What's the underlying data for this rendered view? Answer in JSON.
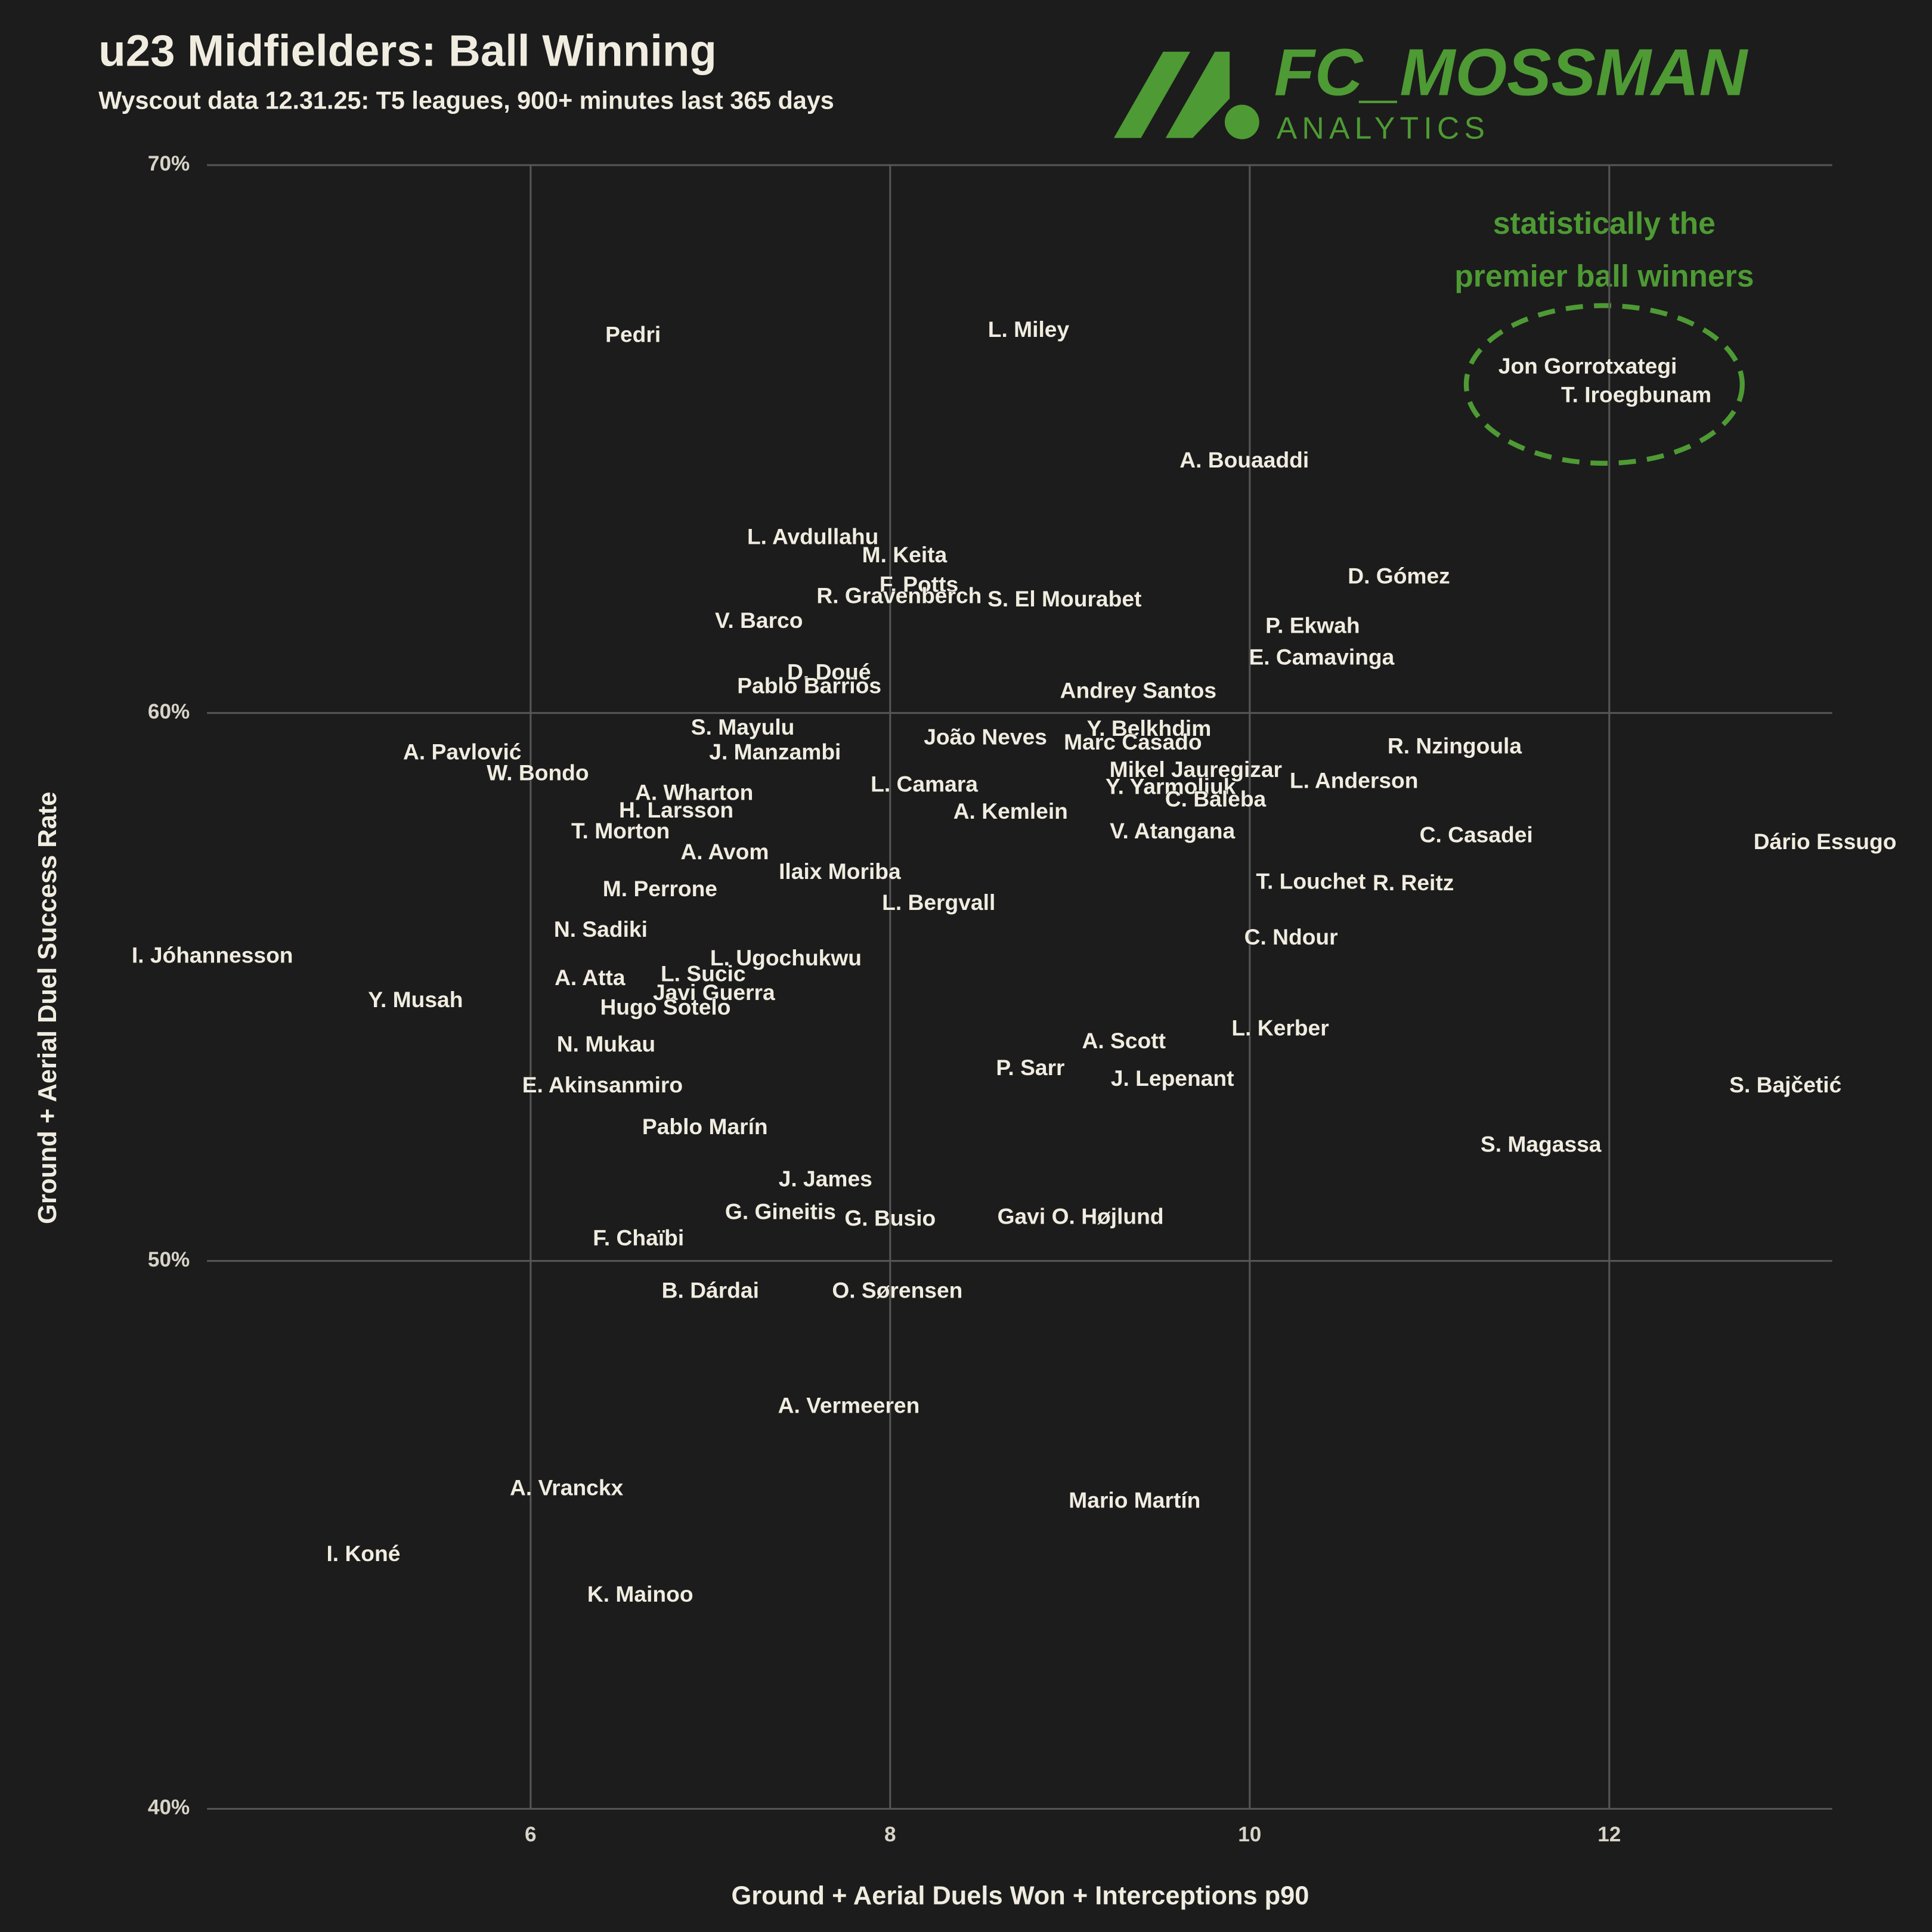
{
  "chart_data": {
    "type": "scatter",
    "title": "u23 Midfielders: Ball Winning",
    "subtitle": "Wyscout data 12.31.25: T5 leagues, 900+ minutes last 365 days",
    "logo": {
      "name": "FC_MOSSMAN",
      "tagline": "ANALYTICS"
    },
    "annotation": [
      "statistically the",
      "premier ball winners"
    ],
    "x_label": "Ground + Aerial Duels Won + Interceptions p90",
    "y_label": "Ground + Aerial Duel Success Rate",
    "xlim": [
      4.2,
      13.24
    ],
    "xticks": [
      6,
      8,
      10,
      12
    ],
    "ylim": [
      40,
      70
    ],
    "yticks": [
      {
        "value": 40,
        "label": "40%"
      },
      {
        "value": 50,
        "label": "50%"
      },
      {
        "value": 60,
        "label": "60%"
      },
      {
        "value": 70,
        "label": "70%"
      }
    ],
    "grid": true,
    "color": "#f0ece0",
    "accent": "#4e9a34",
    "labels": [
      "Pedri",
      "L. Miley",
      "Jon Gorrotxategi",
      "T. Iroegbunam",
      "A. Bouaaddi",
      "L. Avdullahu",
      "M. Keita",
      "D. Gómez",
      "F. Potts",
      "R. Gravenberch",
      "S. El Mourabet",
      "V. Barco",
      "P. Ekwah",
      "E. Camavinga",
      "D. Doué",
      "Pablo Barrios",
      "Andrey Santos",
      "S. Mayulu",
      "J. Manzambi",
      "João Neves",
      "Y. Belkhdim",
      "Marc Casado",
      "R. Nzingoula",
      "A. Pavlović",
      "W. Bondo",
      "Mikel Jauregizar",
      "L. Anderson",
      "A. Wharton",
      "L. Camara",
      "Y. Yarmoliuk",
      "C. Baleba",
      "A. Kemlein",
      "H. Larsson",
      "T. Morton",
      "V. Atangana",
      "C. Casadei",
      "Dário Essugo",
      "A. Avom",
      "Ilaix Moriba",
      "M. Perrone",
      "T. Louchet",
      "R. Reitz",
      "L. Bergvall",
      "N. Sadiki",
      "C. Ndour",
      "I. Jóhannesson",
      "L. Ugochukwu",
      "Y. Musah",
      "A. Atta",
      "L. Sucic",
      "Javi Guerra",
      "Hugo Sotelo",
      "L. Kerber",
      "A. Scott",
      "N. Mukau",
      "P. Sarr",
      "J. Lepenant",
      "E. Akinsanmiro",
      "S. Bajčetić",
      "Pablo Marín",
      "S. Magassa",
      "J. James",
      "G. Gineitis",
      "G. Busio",
      "Gavi",
      "O. Højlund",
      "F. Chaïbi",
      "B. Dárdai",
      "O. Sørensen",
      "A. Vermeeren",
      "A. Vranckx",
      "Mario Martín",
      "I. Koné",
      "K. Mainoo"
    ],
    "x": [
      6.57,
      8.77,
      11.88,
      12.15,
      9.97,
      7.57,
      8.08,
      10.83,
      8.16,
      8.05,
      8.97,
      7.27,
      10.35,
      10.4,
      7.66,
      7.55,
      9.38,
      7.18,
      7.36,
      8.53,
      9.44,
      9.35,
      11.14,
      5.62,
      6.04,
      9.7,
      10.58,
      6.91,
      8.19,
      9.56,
      9.81,
      8.67,
      6.81,
      6.5,
      9.57,
      11.26,
      13.2,
      7.08,
      7.72,
      6.72,
      10.34,
      10.91,
      8.27,
      6.39,
      10.23,
      4.23,
      7.42,
      5.36,
      6.33,
      6.96,
      7.02,
      6.75,
      10.17,
      9.3,
      6.42,
      8.78,
      9.57,
      6.4,
      12.98,
      6.97,
      11.62,
      7.64,
      7.39,
      8.0,
      8.73,
      9.21,
      6.6,
      7.0,
      8.04,
      7.77,
      6.2,
      9.36,
      5.07,
      6.61
    ],
    "values": [
      66.88,
      66.97,
      66.3,
      65.78,
      64.59,
      63.19,
      62.86,
      62.47,
      62.32,
      62.11,
      62.05,
      61.66,
      61.57,
      60.99,
      60.72,
      60.47,
      60.38,
      59.71,
      59.26,
      59.53,
      59.69,
      59.44,
      59.37,
      59.26,
      58.88,
      58.94,
      58.74,
      58.52,
      58.67,
      58.63,
      58.4,
      58.18,
      58.2,
      57.82,
      57.82,
      57.75,
      57.62,
      57.44,
      57.08,
      56.76,
      56.9,
      56.87,
      56.51,
      56.02,
      55.88,
      55.55,
      55.5,
      54.74,
      55.14,
      55.21,
      54.87,
      54.6,
      54.22,
      53.99,
      53.93,
      53.5,
      53.3,
      53.18,
      53.18,
      52.42,
      52.1,
      51.47,
      50.87,
      50.75,
      50.78,
      50.78,
      50.39,
      49.43,
      49.43,
      47.33,
      45.83,
      45.6,
      44.63,
      43.89
    ]
  }
}
